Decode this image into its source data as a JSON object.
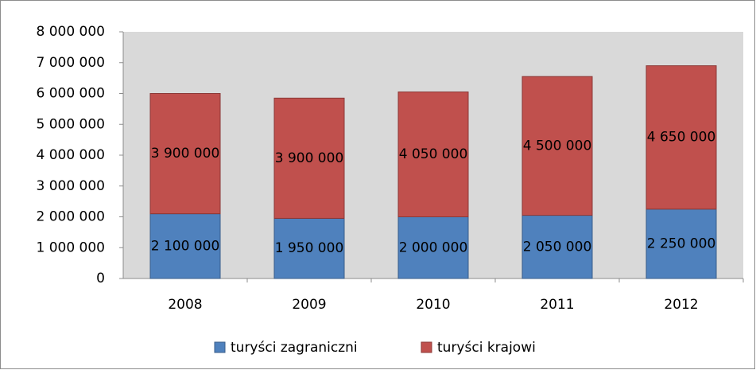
{
  "chart_data": {
    "type": "stacked_bar",
    "categories": [
      "2008",
      "2009",
      "2010",
      "2011",
      "2012"
    ],
    "series": [
      {
        "name": "turyści zagraniczni",
        "color": "#4f81bd",
        "values": [
          2100000,
          1950000,
          2000000,
          2050000,
          2250000
        ],
        "value_labels": [
          "2 100 000",
          "1 950 000",
          "2 000 000",
          "2 050 000",
          "2 250 000"
        ]
      },
      {
        "name": "turyści krajowi",
        "color": "#c0504d",
        "values": [
          3900000,
          3900000,
          4050000,
          4500000,
          4650000
        ],
        "value_labels": [
          "3 900 000",
          "3 900 000",
          "4 050 000",
          "4 500 000",
          "4 650 000"
        ]
      }
    ],
    "ylim": [
      0,
      8000000
    ],
    "yticks": [
      0,
      {
        "value": 1000000,
        "label": "1 000 000"
      },
      {
        "value": 2000000,
        "label": "2 000 000"
      },
      {
        "value": 3000000,
        "label": "3 000 000"
      },
      {
        "value": 4000000,
        "label": "4 000 000"
      },
      {
        "value": 5000000,
        "label": "5 000 000"
      },
      {
        "value": 6000000,
        "label": "6 000 000"
      },
      {
        "value": 7000000,
        "label": "7 000 000"
      },
      {
        "value": 8000000,
        "label": "8 000 000"
      }
    ],
    "legend": "bottom"
  }
}
